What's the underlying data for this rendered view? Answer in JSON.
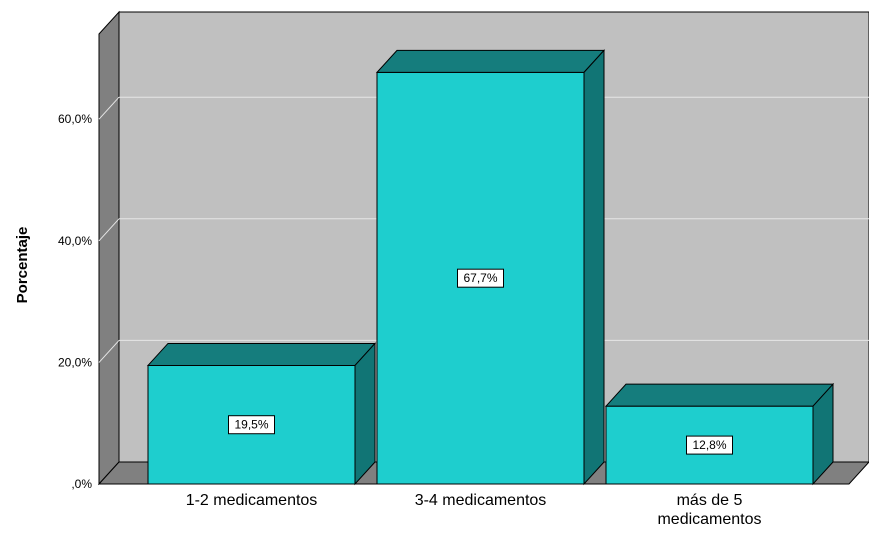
{
  "chart_data": {
    "type": "bar",
    "style": "3d",
    "categories": [
      "1-2 medicamentos",
      "3-4 medicamentos",
      "más de 5 medicamentos"
    ],
    "category_lines": [
      [
        "1-2 medicamentos"
      ],
      [
        "3-4 medicamentos"
      ],
      [
        "más de 5",
        "medicamentos"
      ]
    ],
    "values": [
      19.5,
      67.7,
      12.8
    ],
    "data_labels": [
      "19,5%",
      "67,7%",
      "12,8%"
    ],
    "ylabel": "Porcentaje",
    "ylim": [
      0,
      70
    ],
    "yticks": [
      0,
      20,
      40,
      60
    ],
    "ytick_labels": [
      ",0%",
      "20,0%",
      "40,0%",
      "60,0%"
    ],
    "grid": true,
    "colors": {
      "bar_front": "#1ecece",
      "bar_top": "#157d7d",
      "bar_side": "#117575",
      "back_wall": "#c0c0c0",
      "side_wall": "#808080",
      "floor": "#808080",
      "gridline": "#e6e6e6"
    }
  }
}
